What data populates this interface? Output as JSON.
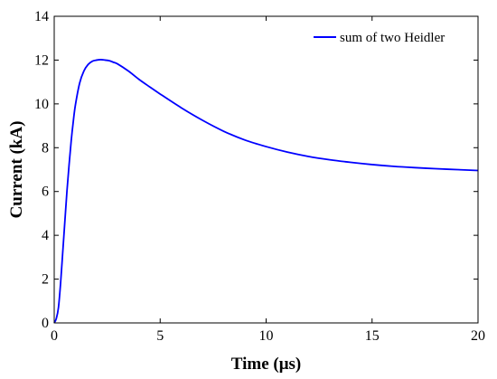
{
  "chart_data": {
    "type": "line",
    "xlabel": "Time (μs)",
    "ylabel": "Current (kA)",
    "xlim": [
      0,
      20
    ],
    "ylim": [
      0,
      14
    ],
    "xticks": [
      0,
      5,
      10,
      15,
      20
    ],
    "yticks": [
      0,
      2,
      4,
      6,
      8,
      10,
      12,
      14
    ],
    "grid": false,
    "legend_position": "top-right",
    "series": [
      {
        "name": "sum of two Heidler",
        "color": "#0000ff",
        "x": [
          0,
          0.1,
          0.2,
          0.3,
          0.4,
          0.5,
          0.6,
          0.7,
          0.8,
          0.9,
          1.0,
          1.2,
          1.4,
          1.6,
          1.8,
          2.0,
          2.2,
          2.4,
          2.6,
          2.8,
          3.0,
          3.5,
          4.0,
          4.5,
          5.0,
          6.0,
          7.0,
          8.0,
          9.0,
          10.0,
          11.0,
          12.0,
          13.0,
          14.0,
          15.0,
          16.0,
          17.0,
          18.0,
          19.0,
          20.0
        ],
        "y": [
          0,
          0.2,
          0.7,
          1.8,
          3.2,
          4.6,
          6.0,
          7.2,
          8.3,
          9.2,
          9.95,
          10.95,
          11.5,
          11.8,
          11.95,
          12.0,
          12.02,
          12.0,
          11.97,
          11.9,
          11.82,
          11.5,
          11.12,
          10.78,
          10.45,
          9.82,
          9.25,
          8.75,
          8.35,
          8.05,
          7.8,
          7.6,
          7.45,
          7.33,
          7.23,
          7.15,
          7.09,
          7.04,
          7.0,
          6.96
        ]
      }
    ]
  }
}
